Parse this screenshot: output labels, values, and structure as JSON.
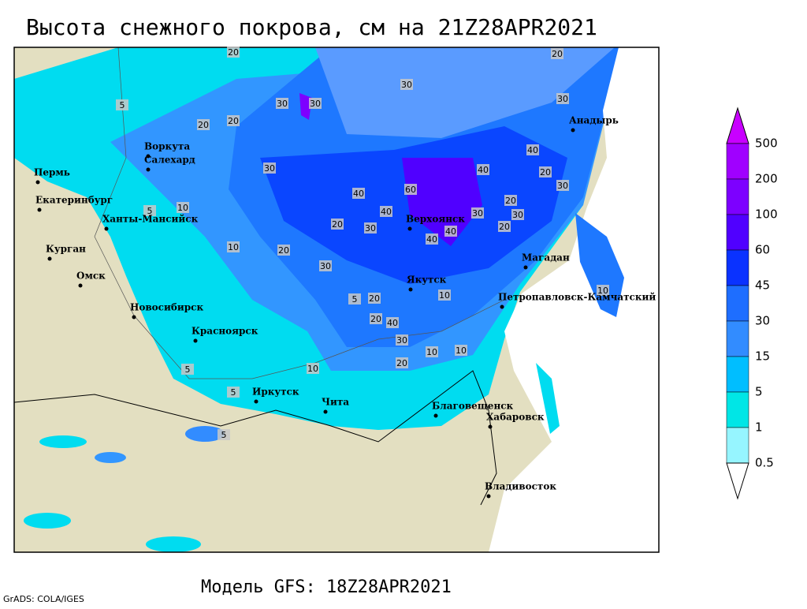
{
  "title": "Высота снежного покрова, см на 21Z28APR2021",
  "cities": [
    "Воркута",
    "Салехард",
    "Пермь",
    "Екатеринбург",
    "Ханты-Мансийск",
    "Курган",
    "Омск",
    "Новосибирск",
    "Красноярск",
    "Иркутск",
    "Чита",
    "Благовещенск",
    "Хабаровск",
    "Владивосток",
    "Верхоянск",
    "Якутск",
    "Магадан",
    "Петропавловск-Камчатский",
    "Анадырь"
  ],
  "contour_labels": [
    20,
    30,
    30,
    30,
    20,
    30,
    20,
    20,
    30,
    40,
    60,
    40,
    30,
    20,
    40,
    40,
    30,
    20,
    30,
    20,
    40,
    40,
    20,
    30,
    20,
    10,
    30,
    20,
    5,
    10,
    40,
    20,
    30,
    10,
    10,
    20,
    10,
    5,
    5,
    5,
    10,
    5,
    5,
    10
  ],
  "colorbar": {
    "ticks": [
      500,
      200,
      100,
      60,
      45,
      30,
      15,
      5,
      1,
      0.5
    ],
    "colors": [
      "#c800ff",
      "#a000ff",
      "#7d00ff",
      "#5000ff",
      "#0a32ff",
      "#1e6eff",
      "#328cff",
      "#00beff",
      "#00e6e6",
      "#96f5ff",
      "#ffffff"
    ]
  },
  "footer": "Модель GFS: 18Z28APR2021",
  "credit": "GrADS: COLA/IGES"
}
